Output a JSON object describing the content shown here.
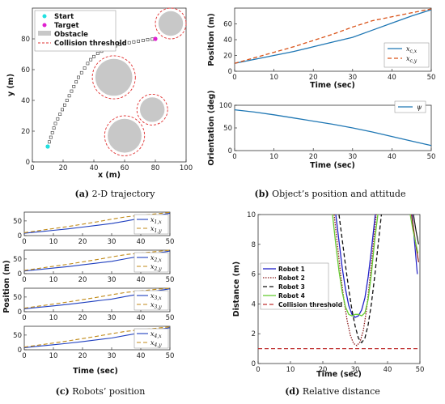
{
  "chart_data": [
    {
      "id": "a",
      "type": "scatter",
      "caption_label": "(a)",
      "caption": "2-D trajectory",
      "xlabel": "x (m)",
      "ylabel": "y (m)",
      "xlim": [
        0,
        100
      ],
      "ylim": [
        0,
        100
      ],
      "xticks": [
        0,
        20,
        40,
        60,
        80,
        100
      ],
      "yticks": [
        0,
        20,
        40,
        60,
        80
      ],
      "legend": [
        "Start",
        "Target",
        "Obstacle",
        "Collision threshold"
      ],
      "start": [
        10,
        10
      ],
      "target": [
        80,
        80
      ],
      "obstacles": [
        {
          "cx": 90,
          "cy": 90,
          "r": 8
        },
        {
          "cx": 53,
          "cy": 55,
          "r": 12
        },
        {
          "cx": 78,
          "cy": 34,
          "r": 8
        },
        {
          "cx": 60,
          "cy": 17,
          "r": 11
        }
      ],
      "trajectory": [
        [
          10,
          10
        ],
        [
          11,
          13
        ],
        [
          12,
          16
        ],
        [
          13,
          19
        ],
        [
          14,
          22
        ],
        [
          15,
          25
        ],
        [
          16.5,
          28
        ],
        [
          18,
          31
        ],
        [
          19.5,
          34
        ],
        [
          21,
          37
        ],
        [
          22.5,
          40
        ],
        [
          24,
          43
        ],
        [
          25.5,
          46
        ],
        [
          27,
          49
        ],
        [
          28.5,
          52
        ],
        [
          30,
          55
        ],
        [
          32,
          58
        ],
        [
          34,
          61
        ],
        [
          36,
          64
        ],
        [
          38,
          66.5
        ],
        [
          40,
          68.5
        ],
        [
          42.5,
          70.5
        ],
        [
          45,
          72
        ],
        [
          48,
          73.5
        ],
        [
          51,
          74.5
        ],
        [
          54,
          75.5
        ],
        [
          57,
          76.5
        ],
        [
          60,
          77
        ],
        [
          63,
          77.5
        ],
        [
          66,
          78
        ],
        [
          69,
          78.5
        ],
        [
          72,
          79
        ],
        [
          75,
          79.5
        ],
        [
          78,
          79.8
        ],
        [
          80,
          80
        ]
      ],
      "colors": {
        "start": "#22e0e0",
        "target": "#e020d0",
        "obstacle": "#c8c8c8",
        "threshold": "#e03030",
        "traj": "#333333"
      }
    },
    {
      "id": "b1",
      "type": "line",
      "caption_label": "(b)",
      "caption": "Object’s position and attitude",
      "xlabel": "Time (sec)",
      "ylabel": "Position (m)",
      "xlim": [
        0,
        50
      ],
      "ylim": [
        0,
        80
      ],
      "xticks": [
        0,
        10,
        20,
        30,
        40,
        50
      ],
      "yticks": [
        0,
        20,
        40,
        60
      ],
      "x": [
        0,
        5,
        10,
        15,
        20,
        25,
        30,
        35,
        40,
        45,
        50
      ],
      "series": [
        {
          "name": "x_{c,x}",
          "color": "#1f77b4",
          "dash": "",
          "values": [
            10,
            15,
            20,
            25,
            31,
            37,
            43,
            52,
            61,
            70,
            78
          ]
        },
        {
          "name": "x_{c,y}",
          "color": "#d95319",
          "dash": "5,3",
          "values": [
            10,
            17,
            24,
            31,
            39,
            47,
            56,
            64,
            69,
            74,
            79
          ]
        }
      ]
    },
    {
      "id": "b2",
      "type": "line",
      "xlabel": "Time (sec)",
      "ylabel": "Orientation (deg)",
      "xlim": [
        0,
        50
      ],
      "ylim": [
        0,
        100
      ],
      "xticks": [
        0,
        10,
        20,
        30,
        40,
        50
      ],
      "yticks": [
        0,
        50,
        100
      ],
      "x": [
        0,
        5,
        10,
        15,
        20,
        25,
        30,
        35,
        40,
        45,
        50
      ],
      "series": [
        {
          "name": "ψ",
          "color": "#1f77b4",
          "dash": "",
          "values": [
            90,
            85,
            79,
            72,
            65,
            58,
            50,
            41,
            31,
            21,
            11
          ]
        }
      ]
    },
    {
      "id": "c",
      "type": "line",
      "caption_label": "(c)",
      "caption": "Robots’ position",
      "xlabel": "Time (sec)",
      "ylabel": "Position (m)",
      "xlim": [
        0,
        50
      ],
      "ylim": [
        0,
        80
      ],
      "xticks": [
        0,
        10,
        20,
        30,
        40,
        50
      ],
      "yticks": [
        0,
        50
      ],
      "x": [
        0,
        5,
        10,
        15,
        20,
        25,
        30,
        35,
        40,
        45,
        50
      ],
      "panels": [
        {
          "series": [
            {
              "name": "x_{1,x}",
              "color": "#1f3fbf",
              "dash": "",
              "values": [
                8,
                13,
                18,
                23,
                29,
                35,
                41,
                50,
                59,
                68,
                76
              ]
            },
            {
              "name": "x_{1,y}",
              "color": "#c08a18",
              "dash": "5,3",
              "values": [
                10,
                17,
                24,
                31,
                39,
                47,
                56,
                64,
                69,
                74,
                79
              ]
            }
          ]
        },
        {
          "series": [
            {
              "name": "x_{2,x}",
              "color": "#1f3fbf",
              "dash": "",
              "values": [
                9,
                14,
                19,
                24,
                30,
                36,
                42,
                51,
                60,
                69,
                77
              ]
            },
            {
              "name": "x_{2,y}",
              "color": "#c08a18",
              "dash": "5,3",
              "values": [
                11,
                18,
                25,
                32,
                40,
                48,
                57,
                65,
                70,
                75,
                80
              ]
            }
          ]
        },
        {
          "series": [
            {
              "name": "x_{3,x}",
              "color": "#1f3fbf",
              "dash": "",
              "values": [
                10,
                15,
                20,
                25,
                31,
                37,
                43,
                52,
                61,
                70,
                78
              ]
            },
            {
              "name": "x_{3,y}",
              "color": "#c08a18",
              "dash": "5,3",
              "values": [
                12,
                19,
                26,
                33,
                41,
                49,
                58,
                66,
                71,
                76,
                80
              ]
            }
          ]
        },
        {
          "series": [
            {
              "name": "x_{4,x}",
              "color": "#1f3fbf",
              "dash": "",
              "values": [
                7,
                12,
                17,
                22,
                28,
                34,
                40,
                49,
                58,
                67,
                75
              ]
            },
            {
              "name": "x_{4,y}",
              "color": "#c08a18",
              "dash": "5,3",
              "values": [
                9,
                16,
                23,
                30,
                38,
                46,
                55,
                63,
                68,
                73,
                78
              ]
            }
          ]
        }
      ]
    },
    {
      "id": "d",
      "type": "line",
      "caption_label": "(d)",
      "caption": "Relative distance",
      "xlabel": "Time (sec)",
      "ylabel": "Distance (m)",
      "xlim": [
        0,
        50
      ],
      "ylim": [
        0,
        10
      ],
      "xticks": [
        0,
        10,
        20,
        30,
        40,
        50
      ],
      "yticks": [
        0,
        2,
        4,
        6,
        8,
        10
      ],
      "series": [
        {
          "name": "Robot 1",
          "color": "#2020c8",
          "dash": "",
          "points": [
            [
              24,
              10
            ],
            [
              25,
              8.2
            ],
            [
              26,
              6.4
            ],
            [
              27,
              5.0
            ],
            [
              28,
              3.9
            ],
            [
              29,
              3.3
            ],
            [
              30,
              3.1
            ],
            [
              31,
              3.2
            ],
            [
              32,
              3.6
            ],
            [
              33,
              4.4
            ],
            [
              34,
              5.8
            ],
            [
              35,
              7.6
            ],
            [
              36,
              9.6
            ],
            [
              36.2,
              10
            ]
          ]
        },
        {
          "name": "Robot 2",
          "color": "#8b1a1a",
          "dash": "1.5,1.5",
          "points": [
            [
              23.5,
              10
            ],
            [
              24.5,
              8.0
            ],
            [
              25.5,
              6.0
            ],
            [
              26.5,
              4.3
            ],
            [
              27.5,
              2.9
            ],
            [
              28.5,
              1.9
            ],
            [
              29.5,
              1.35
            ],
            [
              30.5,
              1.2
            ],
            [
              31.5,
              1.45
            ],
            [
              32.5,
              2.2
            ],
            [
              33.5,
              3.6
            ],
            [
              34.5,
              5.6
            ],
            [
              35.5,
              7.8
            ],
            [
              36.5,
              10
            ]
          ]
        },
        {
          "name": "Robot 3",
          "color": "#111111",
          "dash": "5,3",
          "points": [
            [
              25,
              10
            ],
            [
              26,
              8.3
            ],
            [
              27,
              6.6
            ],
            [
              28,
              5.0
            ],
            [
              29,
              3.6
            ],
            [
              30,
              2.5
            ],
            [
              31,
              1.7
            ],
            [
              32,
              1.4
            ],
            [
              33,
              1.7
            ],
            [
              34,
              2.6
            ],
            [
              35,
              4.0
            ],
            [
              36,
              5.8
            ],
            [
              37,
              7.8
            ],
            [
              38,
              9.8
            ],
            [
              38.1,
              10
            ]
          ]
        },
        {
          "name": "Robot 4",
          "color": "#66cc33",
          "dash": "",
          "points": [
            [
              23,
              10
            ],
            [
              24,
              8.0
            ],
            [
              25,
              6.2
            ],
            [
              26,
              4.8
            ],
            [
              27,
              3.8
            ],
            [
              28,
              3.3
            ],
            [
              29,
              3.2
            ],
            [
              30,
              3.3
            ],
            [
              31,
              3.3
            ],
            [
              32,
              3.2
            ],
            [
              33,
              3.4
            ],
            [
              34,
              4.3
            ],
            [
              35,
              6.0
            ],
            [
              36,
              8.2
            ],
            [
              37,
              10
            ]
          ]
        },
        {
          "name": "Collision threshold",
          "color": "#c03030",
          "dash": "5,3",
          "points": [
            [
              0,
              1
            ],
            [
              50,
              1
            ]
          ]
        }
      ],
      "right_edge": [
        {
          "color": "#2020c8",
          "points": [
            [
              47.6,
              10
            ],
            [
              48.2,
              8.5
            ],
            [
              48.8,
              7.0
            ],
            [
              49.2,
              6.0
            ]
          ]
        },
        {
          "color": "#8b1a1a",
          "points": [
            [
              47.4,
              10
            ],
            [
              48.2,
              8.8
            ],
            [
              49.0,
              7.6
            ],
            [
              49.6,
              6.8
            ]
          ]
        },
        {
          "color": "#111111",
          "points": [
            [
              48.0,
              10
            ],
            [
              48.8,
              8.9
            ],
            [
              49.6,
              8.0
            ]
          ]
        },
        {
          "color": "#66cc33",
          "points": [
            [
              47.0,
              10
            ],
            [
              47.8,
              9.0
            ],
            [
              48.6,
              8.2
            ],
            [
              49.4,
              7.4
            ]
          ]
        }
      ]
    }
  ]
}
